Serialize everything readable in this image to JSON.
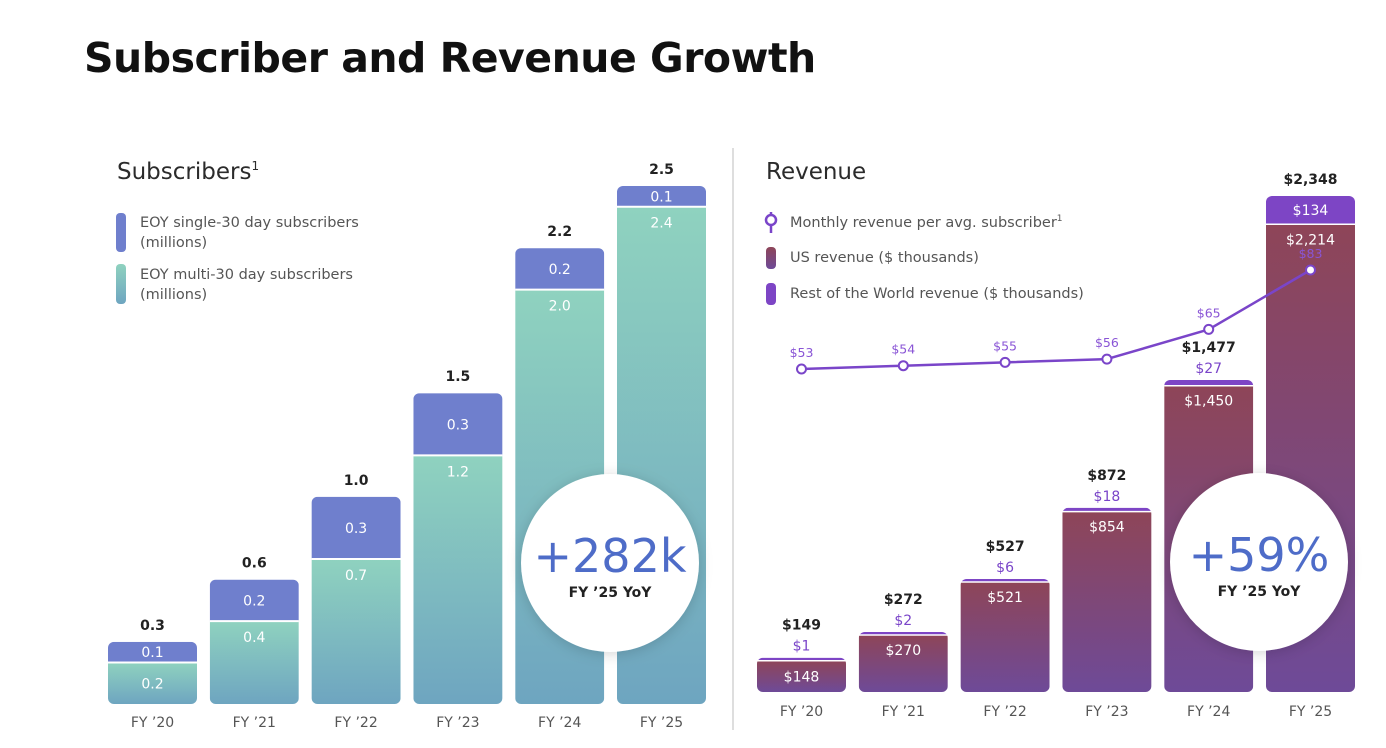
{
  "page_title": "Subscriber and Revenue Growth",
  "colors": {
    "single_sub": "#6f7fcd",
    "multi_sub_top": "#8fd2bf",
    "multi_sub_bottom": "#6ea5c0",
    "us_rev_top": "#8e4558",
    "us_rev_bottom": "#6e4a98",
    "row_rev": "#7d45c5",
    "line": "#7a45c9"
  },
  "chart_data": [
    {
      "type": "bar",
      "stacked": true,
      "title": "Subscribers",
      "title_superscript": "1",
      "categories": [
        "FY ’20",
        "FY ’21",
        "FY ’22",
        "FY ’23",
        "FY ’24",
        "FY ’25"
      ],
      "series": [
        {
          "name": "EOY multi-30 day subscribers (millions)",
          "values": [
            0.2,
            0.4,
            0.7,
            1.2,
            2.0,
            2.4
          ],
          "labels": [
            "0.2",
            "0.4",
            "0.7",
            "1.2",
            "2.0",
            "2.4"
          ]
        },
        {
          "name": "EOY single-30 day subscribers (millions)",
          "values": [
            0.1,
            0.2,
            0.3,
            0.3,
            0.2,
            0.1
          ],
          "labels": [
            "0.1",
            "0.2",
            "0.3",
            "0.3",
            "0.2",
            "0.1"
          ]
        }
      ],
      "legend": [
        {
          "line1": "EOY single-30 day subscribers",
          "line2": "(millions)"
        },
        {
          "line1": "EOY multi-30 day subscribers",
          "line2": "(millions)"
        }
      ],
      "totals": [
        0.3,
        0.6,
        1.0,
        1.5,
        2.2,
        2.5
      ],
      "total_labels": [
        "0.3",
        "0.6",
        "1.0",
        "1.5",
        "2.2",
        "2.5"
      ],
      "ylim": [
        0,
        2.5
      ],
      "legend_position": "top-left",
      "grid": false,
      "badge": {
        "value": "+282k",
        "caption": "FY ’25 YoY"
      }
    },
    {
      "type": "bar+line",
      "stacked": true,
      "title": "Revenue",
      "categories": [
        "FY ’20",
        "FY ’21",
        "FY ’22",
        "FY ’23",
        "FY ’24",
        "FY ’25"
      ],
      "series": [
        {
          "name": "US revenue ($ thousands)",
          "values": [
            148,
            270,
            521,
            854,
            1450,
            2214
          ],
          "labels": [
            "$148",
            "$270",
            "$521",
            "$854",
            "$1,450",
            "$2,214"
          ]
        },
        {
          "name": "Rest of the World revenue ($ thousands)",
          "values": [
            1,
            2,
            6,
            18,
            27,
            134
          ],
          "labels": [
            "$1",
            "$2",
            "$6",
            "$18",
            "$27",
            "$134"
          ]
        }
      ],
      "totals": [
        149,
        272,
        527,
        872,
        1477,
        2348
      ],
      "total_labels": [
        "$149",
        "$272",
        "$527",
        "$872",
        "$1,477",
        "$2,348"
      ],
      "line": {
        "name": "Monthly revenue per avg. subscriber",
        "name_superscript": "1",
        "values": [
          53,
          54,
          55,
          56,
          65,
          83
        ],
        "labels": [
          "$53",
          "$54",
          "$55",
          "$56",
          "$65",
          "$83"
        ]
      },
      "ylim": [
        0,
        2348
      ],
      "legend_position": "top-left",
      "grid": false,
      "badge": {
        "value": "+59%",
        "caption": "FY ’25 YoY"
      }
    }
  ]
}
